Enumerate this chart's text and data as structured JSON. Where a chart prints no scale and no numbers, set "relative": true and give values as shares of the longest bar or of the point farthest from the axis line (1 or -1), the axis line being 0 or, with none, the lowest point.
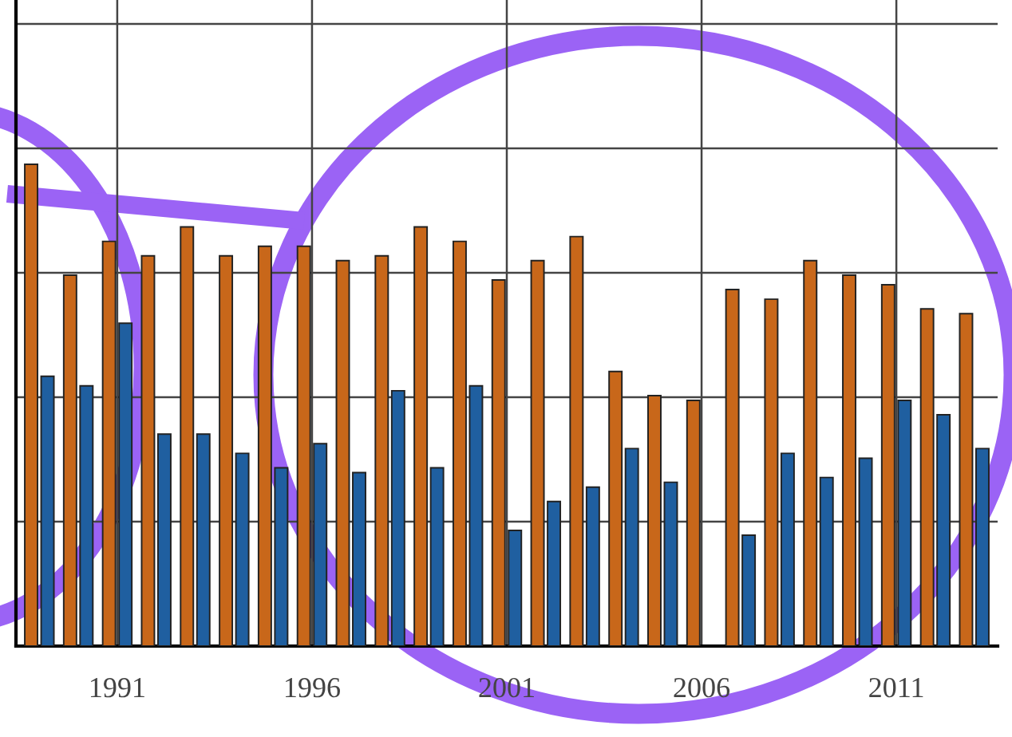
{
  "chart_data": {
    "type": "bar",
    "relative": true,
    "categories": [
      null,
      null,
      "1991",
      null,
      null,
      null,
      null,
      "1996",
      null,
      null,
      null,
      null,
      "2001",
      null,
      null,
      null,
      null,
      "2006",
      null,
      null,
      null,
      null,
      "2011",
      null,
      null
    ],
    "series": [
      {
        "color": "#c8671a",
        "values": [
          1,
          0.77,
          0.84,
          0.81,
          0.87,
          0.81,
          0.83,
          0.83,
          0.8,
          0.81,
          0.87,
          0.84,
          0.76,
          0.8,
          0.85,
          0.57,
          0.52,
          0.51,
          0.74,
          0.72,
          0.8,
          0.77,
          0.75,
          0.7,
          0.69
        ]
      },
      {
        "color": "#1f5fa0",
        "values": [
          0.56,
          0.54,
          0.67,
          0.44,
          0.44,
          0.4,
          0.37,
          0.42,
          0.36,
          0.53,
          0.37,
          0.54,
          0.24,
          0.3,
          0.33,
          0.41,
          0.34,
          null,
          0.23,
          0.4,
          0.35,
          0.39,
          0.51,
          0.48,
          0.41
        ]
      }
    ],
    "grid": true
  }
}
